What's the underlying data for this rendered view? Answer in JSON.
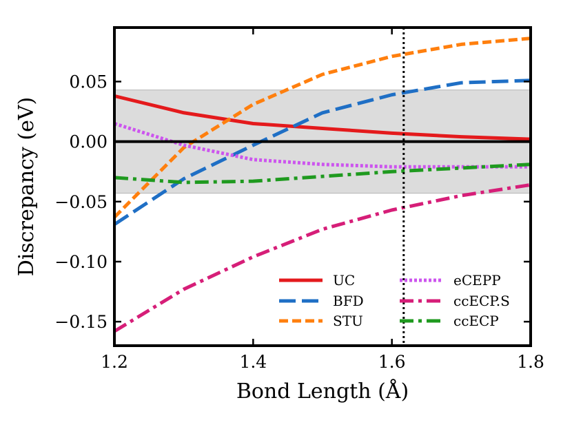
{
  "chart_data": {
    "type": "line",
    "title": "",
    "xlabel": "Bond Length (Å)",
    "ylabel": "Discrepancy (eV)",
    "xlim": [
      1.2,
      1.8
    ],
    "ylim": [
      -0.17,
      0.095
    ],
    "x_ticks": [
      1.2,
      1.4,
      1.6,
      1.8
    ],
    "x_tick_labels": [
      "1.2",
      "1.4",
      "1.6",
      "1.8"
    ],
    "y_ticks": [
      -0.15,
      -0.1,
      -0.05,
      0.0,
      0.05
    ],
    "y_tick_labels": [
      "−0.15",
      "−0.10",
      "−0.05",
      "0.00",
      "0.05"
    ],
    "shaded_band": [
      -0.043,
      0.043
    ],
    "shaded_band_color": "#dcdcdc",
    "zero_line_color": "#000000",
    "vertical_reference_x": 1.617,
    "legend_position": "lower-right",
    "series": [
      {
        "name": "UC",
        "color": "#e41a1c",
        "style": "solid",
        "x": [
          1.2,
          1.3,
          1.4,
          1.5,
          1.6,
          1.7,
          1.8
        ],
        "values": [
          0.038,
          0.024,
          0.015,
          0.011,
          0.007,
          0.004,
          0.002
        ]
      },
      {
        "name": "BFD",
        "color": "#1f6fc5",
        "style": "longdash",
        "x": [
          1.2,
          1.3,
          1.4,
          1.5,
          1.6,
          1.7,
          1.8
        ],
        "values": [
          -0.069,
          -0.031,
          -0.003,
          0.024,
          0.039,
          0.049,
          0.051
        ]
      },
      {
        "name": "STU",
        "color": "#ff7f0e",
        "style": "dash",
        "x": [
          1.2,
          1.3,
          1.4,
          1.5,
          1.6,
          1.7,
          1.8
        ],
        "values": [
          -0.063,
          -0.005,
          0.031,
          0.056,
          0.071,
          0.081,
          0.086
        ]
      },
      {
        "name": "eCEPP",
        "color": "#cc55ee",
        "style": "dotted",
        "x": [
          1.2,
          1.3,
          1.4,
          1.5,
          1.6,
          1.7,
          1.8
        ],
        "values": [
          0.015,
          -0.003,
          -0.015,
          -0.019,
          -0.021,
          -0.021,
          -0.021
        ]
      },
      {
        "name": "ccECP.S",
        "color": "#d61e78",
        "style": "dashdot",
        "x": [
          1.2,
          1.3,
          1.4,
          1.5,
          1.6,
          1.7,
          1.8
        ],
        "values": [
          -0.158,
          -0.123,
          -0.096,
          -0.073,
          -0.057,
          -0.045,
          -0.036
        ]
      },
      {
        "name": "ccECP",
        "color": "#1f9a1f",
        "style": "dashdot",
        "x": [
          1.2,
          1.3,
          1.4,
          1.5,
          1.6,
          1.7,
          1.8
        ],
        "values": [
          -0.03,
          -0.034,
          -0.033,
          -0.029,
          -0.025,
          -0.022,
          -0.019
        ]
      }
    ]
  }
}
